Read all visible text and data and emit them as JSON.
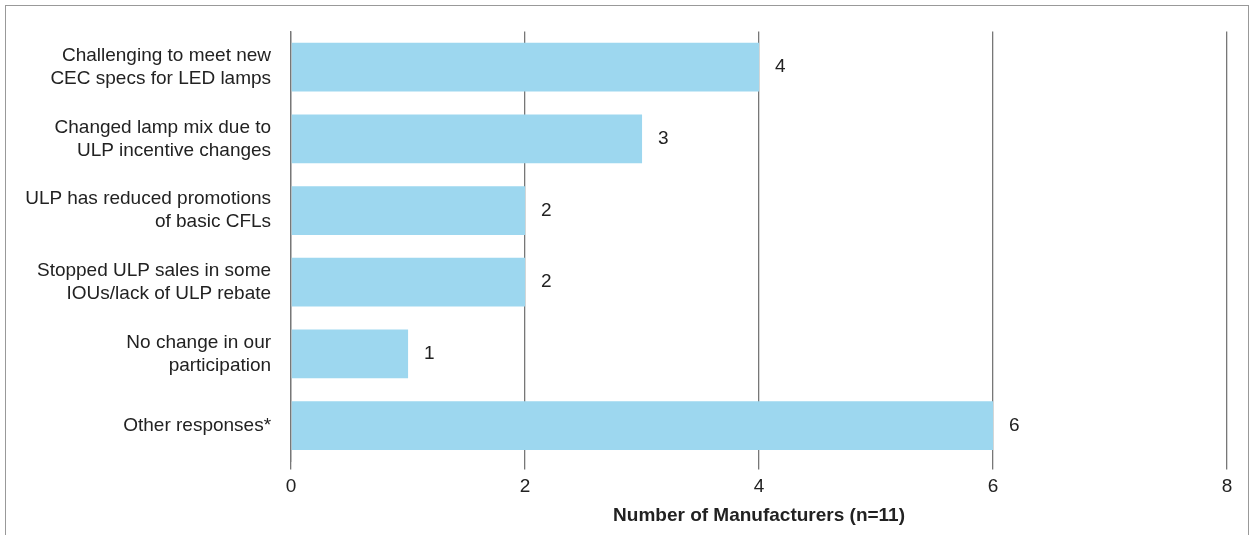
{
  "chart_data": {
    "type": "bar",
    "orientation": "horizontal",
    "xlabel": "Number of Manufacturers (n=11)",
    "categories": [
      "Challenging to meet new CEC specs for LED lamps",
      "Changed lamp mix due to ULP incentive changes",
      "ULP has reduced promotions of basic CFLs",
      "Stopped ULP sales in some IOUs/lack of ULP rebate",
      "No change in our participation",
      "Other responses*"
    ],
    "values": [
      4,
      3,
      2,
      2,
      1,
      6
    ],
    "color": "#9dd7ef",
    "xlim": [
      0,
      8
    ],
    "xticks": [
      0,
      2,
      4,
      6,
      8
    ],
    "grid": "x",
    "data_labels": true,
    "legend": false
  }
}
